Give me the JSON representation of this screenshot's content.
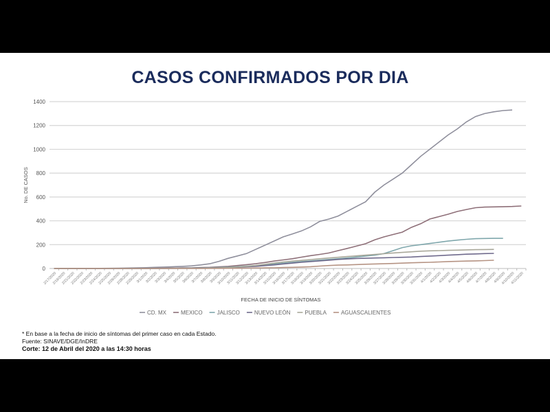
{
  "slide": {
    "title": "CASOS CONFIRMADOS POR DIA",
    "footnote": "* En base a la fecha de inicio de síntomas del primer caso en cada Estado.",
    "source": "Fuente: SINAVE/DGE/InDRE",
    "cutoff": "Corte: 12 de Abril del 2020 a las 14:30 horas"
  },
  "chart_data": {
    "type": "line",
    "title": "",
    "xlabel": "FECHA DE INICIO DE SÍNTOMAS",
    "ylabel": "No. DE CASOS",
    "ylim": [
      0,
      1400
    ],
    "yticks": [
      0,
      200,
      400,
      600,
      800,
      1000,
      1200,
      1400
    ],
    "grid": true,
    "legend": "bottom",
    "categories": [
      "2/17/2020",
      "2/19/2020",
      "2/21/2020",
      "2/22/2020",
      "2/23/2020",
      "2/24/2020",
      "2/25/2020",
      "2/26/2020",
      "2/28/2020",
      "2/29/2020",
      "3/1/2020",
      "3/2/2020",
      "3/3/2020",
      "3/4/2020",
      "3/5/2020",
      "3/6/2020",
      "3/7/2020",
      "3/8/2020",
      "3/9/2020",
      "3/10/2020",
      "3/11/2020",
      "3/12/2020",
      "3/13/2020",
      "3/14/2020",
      "3/15/2020",
      "3/16/2020",
      "3/17/2020",
      "3/18/2020",
      "3/19/2020",
      "3/20/2020",
      "3/21/2020",
      "3/22/2020",
      "3/23/2020",
      "3/24/2020",
      "3/25/2020",
      "3/26/2020",
      "3/27/2020",
      "3/28/2020",
      "3/29/2020",
      "3/30/2020",
      "3/31/2020",
      "4/1/2020",
      "4/2/2020",
      "4/3/2020",
      "4/4/2020",
      "4/5/2020",
      "4/6/2020",
      "4/7/2020",
      "4/8/2020",
      "4/9/2020",
      "4/10/2020",
      "4/11/2020"
    ],
    "series": [
      {
        "name": "CD. MX",
        "color": "#8f8f9c",
        "values": [
          0,
          0,
          0,
          0,
          1,
          1,
          2,
          3,
          4,
          5,
          7,
          10,
          12,
          15,
          18,
          22,
          30,
          40,
          60,
          85,
          105,
          125,
          160,
          195,
          230,
          265,
          290,
          315,
          350,
          395,
          415,
          440,
          480,
          520,
          560,
          640,
          700,
          750,
          800,
          870,
          940,
          1000,
          1060,
          1120,
          1170,
          1230,
          1275,
          1300,
          1315,
          1325,
          1330,
          null
        ]
      },
      {
        "name": "MEXICO",
        "color": "#8e6f78",
        "values": [
          0,
          0,
          0,
          0,
          0,
          0,
          0,
          0,
          0,
          1,
          1,
          2,
          3,
          4,
          5,
          6,
          8,
          10,
          14,
          18,
          25,
          32,
          40,
          50,
          62,
          72,
          82,
          95,
          108,
          118,
          130,
          150,
          168,
          188,
          208,
          240,
          265,
          285,
          305,
          345,
          375,
          415,
          435,
          455,
          478,
          495,
          510,
          515,
          517,
          518,
          520,
          524
        ]
      },
      {
        "name": "JALISCO",
        "color": "#7fa7ac",
        "values": [
          0,
          0,
          0,
          0,
          0,
          0,
          0,
          0,
          0,
          0,
          0,
          1,
          1,
          2,
          3,
          4,
          5,
          7,
          9,
          12,
          15,
          20,
          25,
          30,
          38,
          45,
          52,
          58,
          64,
          70,
          76,
          82,
          88,
          96,
          104,
          112,
          125,
          150,
          175,
          190,
          200,
          210,
          220,
          230,
          238,
          245,
          250,
          252,
          253,
          253,
          null,
          null
        ]
      },
      {
        "name": "NUEVO LEÓN",
        "color": "#6f6a8c",
        "values": [
          0,
          0,
          0,
          0,
          0,
          0,
          0,
          0,
          0,
          0,
          0,
          0,
          1,
          1,
          2,
          3,
          4,
          5,
          6,
          8,
          10,
          14,
          18,
          24,
          30,
          38,
          45,
          52,
          58,
          64,
          70,
          76,
          80,
          84,
          86,
          88,
          90,
          92,
          94,
          96,
          100,
          104,
          108,
          112,
          116,
          120,
          122,
          125,
          127,
          null,
          null,
          null
        ]
      },
      {
        "name": "PUEBLA",
        "color": "#a9a89a",
        "values": [
          0,
          0,
          0,
          0,
          0,
          0,
          0,
          0,
          0,
          0,
          0,
          0,
          0,
          1,
          1,
          2,
          3,
          4,
          6,
          8,
          12,
          18,
          25,
          35,
          45,
          55,
          62,
          68,
          75,
          82,
          88,
          94,
          100,
          106,
          112,
          118,
          124,
          130,
          135,
          140,
          145,
          148,
          150,
          152,
          154,
          156,
          158,
          159,
          160,
          null,
          null,
          null
        ]
      },
      {
        "name": "AGUASCALIENTES",
        "color": "#b59383",
        "values": [
          0,
          0,
          0,
          0,
          0,
          0,
          0,
          0,
          0,
          0,
          0,
          0,
          0,
          0,
          0,
          0,
          0,
          1,
          1,
          2,
          2,
          3,
          4,
          5,
          6,
          8,
          10,
          12,
          15,
          20,
          25,
          28,
          30,
          33,
          36,
          38,
          40,
          42,
          45,
          48,
          50,
          52,
          55,
          58,
          60,
          62,
          64,
          66,
          69,
          null,
          null,
          null
        ]
      }
    ]
  }
}
